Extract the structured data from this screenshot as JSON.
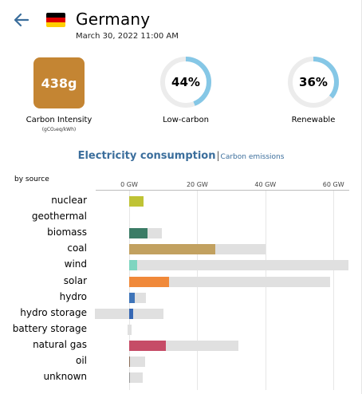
{
  "header": {
    "back_icon": "arrow-left-icon",
    "flag_icon": "germany-flag-icon",
    "country": "Germany",
    "datetime": "March 30, 2022 11:00 AM"
  },
  "colors": {
    "accent": "#3b6e9c",
    "carbon_box": "#c48533",
    "ring_fill": "#85c7e6",
    "ring_track": "#ececec",
    "capacity_bar": "#e0e0e0"
  },
  "metrics": {
    "carbon_intensity": {
      "value": "438g",
      "label": "Carbon Intensity",
      "unit": "(gCO₂eq/kWh)"
    },
    "low_carbon": {
      "text": "44%",
      "fraction": 0.44,
      "label": "Low-carbon"
    },
    "renewable": {
      "text": "36%",
      "fraction": 0.36,
      "label": "Renewable"
    }
  },
  "tabs": {
    "active": "Electricity consumption",
    "separator": "|",
    "inactive": "Carbon emissions"
  },
  "chart_data": {
    "type": "bar",
    "title": "by source",
    "tick_labels": [
      "0 GW",
      "20 GW",
      "40 GW",
      "60 GW"
    ],
    "xlim": [
      -10,
      64.5
    ],
    "unit": "GW",
    "categories": [
      "nuclear",
      "geothermal",
      "biomass",
      "coal",
      "wind",
      "solar",
      "hydro",
      "hydro storage",
      "battery storage",
      "natural gas",
      "oil",
      "unknown"
    ],
    "series": [
      {
        "name": "production",
        "values": [
          4.1,
          0,
          5.3,
          25.3,
          2.3,
          11.6,
          1.6,
          1.2,
          0,
          10.8,
          0.2,
          0.2
        ]
      },
      {
        "name": "capacity",
        "values": [
          4.1,
          0,
          9.5,
          40.0,
          64.5,
          59.0,
          5.0,
          10.0,
          0.6,
          32.0,
          4.7,
          4.0
        ]
      },
      {
        "name": "negative",
        "values": [
          0,
          0,
          0,
          0,
          0,
          0,
          0,
          -10.0,
          -0.5,
          0,
          0,
          0
        ]
      }
    ],
    "bar_colors": [
      "#bfc335",
      "#a86132",
      "#3b7c66",
      "#c2a160",
      "#7fd5c0",
      "#f0893a",
      "#3f75b9",
      "#3768b4",
      "#8c8c8c",
      "#c64c67",
      "#8a6e59",
      "#999999"
    ]
  }
}
